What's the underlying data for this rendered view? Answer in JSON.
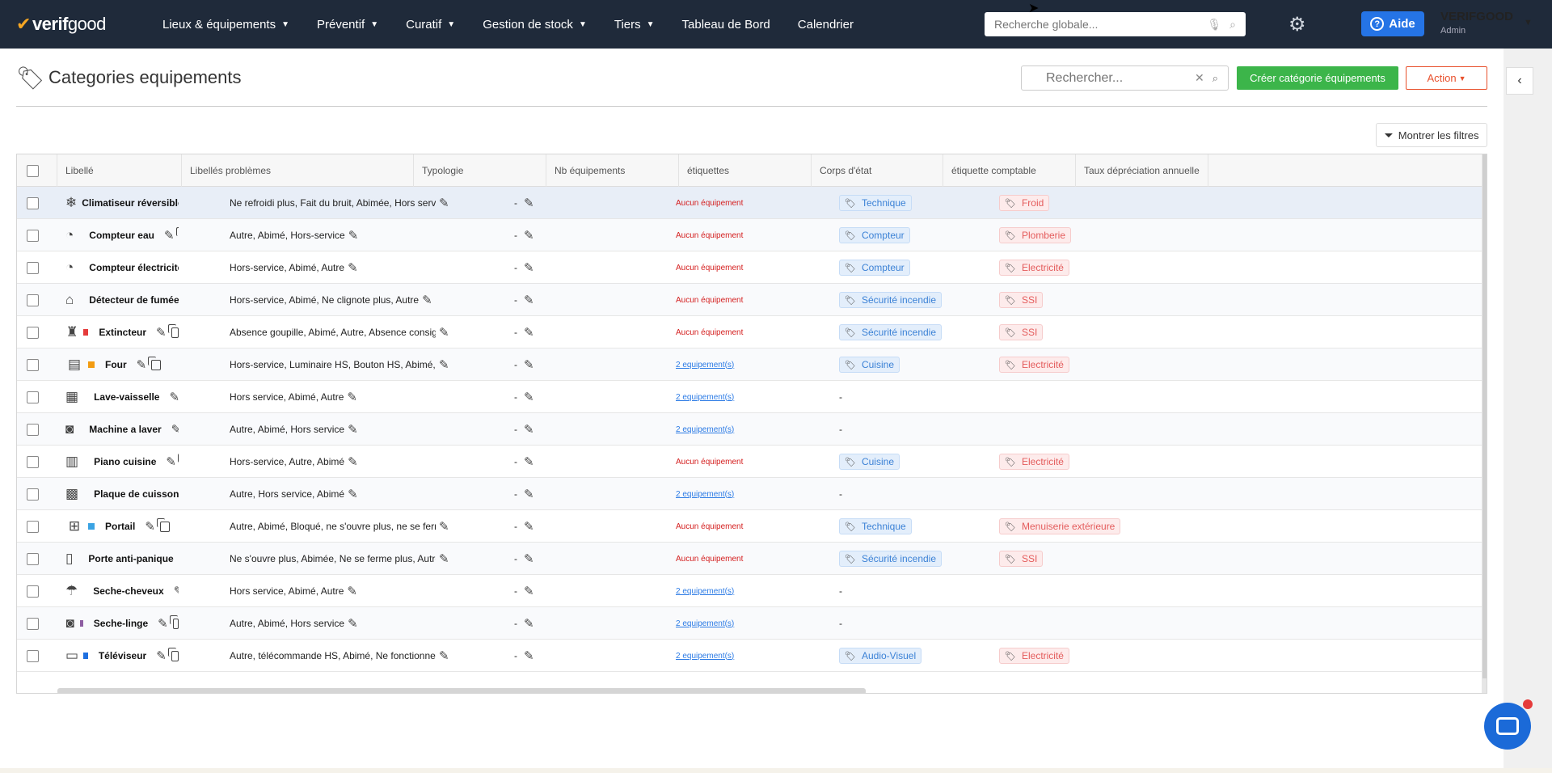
{
  "app": {
    "brand_left": "verif",
    "brand_right": "good"
  },
  "nav": [
    {
      "label": "Lieux & équipements",
      "has_menu": true
    },
    {
      "label": "Préventif",
      "has_menu": true
    },
    {
      "label": "Curatif",
      "has_menu": true
    },
    {
      "label": "Gestion de stock",
      "has_menu": true
    },
    {
      "label": "Tiers",
      "has_menu": true
    },
    {
      "label": "Tableau de Bord",
      "has_menu": false
    },
    {
      "label": "Calendrier",
      "has_menu": false
    }
  ],
  "global_search": {
    "placeholder": "Recherche globale..."
  },
  "aide_label": "Aide",
  "user": {
    "name": "VERIFGOOD",
    "role": "Admin"
  },
  "page": {
    "title": "Categories equipements",
    "search_placeholder": "Rechercher...",
    "create_label": "Créer catégorie équipements",
    "action_label": "Action",
    "filters_label": "Montrer les filtres"
  },
  "table": {
    "columns": [
      "Libellé",
      "Libellés problèmes",
      "Typologie",
      "Nb équipements",
      "étiquettes",
      "Corps d'état",
      "étiquette comptable",
      "Taux dépréciation annuelle"
    ],
    "rows": [
      {
        "icon": "air-conditioner-icon",
        "glyph": "❄",
        "color": "",
        "label": "Climatiseur réversible",
        "problems": "Ne refroidi plus, Fait du bruit, Abimée, Hors service, Autre",
        "typologie": "-",
        "nb": "Aucun équipement",
        "nb_zero": true,
        "tag": "Technique",
        "corps": "Froid",
        "copy": false,
        "highlight": true
      },
      {
        "icon": "water-meter-icon",
        "glyph": "◔",
        "color": "#1e6fe0",
        "label": "Compteur eau",
        "problems": "Autre, Abimé, Hors-service",
        "typologie": "-",
        "nb": "Aucun équipement",
        "nb_zero": true,
        "tag": "Compteur",
        "corps": "Plomberie",
        "copy": true
      },
      {
        "icon": "electric-meter-icon",
        "glyph": "◔",
        "color": "#f2c200",
        "thin": true,
        "label": "Compteur électricité",
        "problems": "Hors-service, Abimé, Autre",
        "typologie": "-",
        "nb": "Aucun équipement",
        "nb_zero": true,
        "tag": "Compteur",
        "corps": "Electricité",
        "copy": false
      },
      {
        "icon": "smoke-detector-icon",
        "glyph": "⌂",
        "color": "#e8502c",
        "thin": true,
        "label": "Détecteur de fumée",
        "problems": "Hors-service, Abimé, Ne clignote plus, Autre",
        "typologie": "-",
        "nb": "Aucun équipement",
        "nb_zero": true,
        "tag": "Sécurité incendie",
        "corps": "SSI",
        "copy": false
      },
      {
        "icon": "extinguisher-icon",
        "glyph": "♜",
        "color": "#e53b3b",
        "label": "Extincteur",
        "problems": "Absence goupille, Abimé, Autre, Absence consigne",
        "typologie": "-",
        "nb": "Aucun équipement",
        "nb_zero": true,
        "tag": "Sécurité incendie",
        "corps": "SSI",
        "copy": true
      },
      {
        "icon": "oven-icon",
        "glyph": "▤",
        "color": "#f39c12",
        "label": "Four",
        "problems": "Hors-service, Luminaire HS, Bouton HS, Abimé, Autre",
        "typologie": "-",
        "nb": "2 equipement(s)",
        "nb_zero": false,
        "tag": "Cuisine",
        "corps": "Electricité",
        "copy": true
      },
      {
        "icon": "dishwasher-icon",
        "glyph": "▦",
        "color": "#d42020",
        "label": "Lave-vaisselle",
        "problems": "Hors service, Abimé, Autre",
        "typologie": "-",
        "nb": "2 equipement(s)",
        "nb_zero": false,
        "tag": "",
        "corps": "",
        "copy": true
      },
      {
        "icon": "washing-machine-icon",
        "glyph": "◙",
        "color": "#f39c12",
        "label": "Machine a laver",
        "problems": "Autre, Abimé, Hors service",
        "typologie": "-",
        "nb": "2 equipement(s)",
        "nb_zero": false,
        "tag": "",
        "corps": "",
        "copy": true
      },
      {
        "icon": "cooking-range-icon",
        "glyph": "▥",
        "color": "#f39c12",
        "label": "Piano cuisine",
        "problems": "Hors-service, Autre, Abimé",
        "typologie": "-",
        "nb": "Aucun équipement",
        "nb_zero": true,
        "tag": "Cuisine",
        "corps": "Electricité",
        "copy": true
      },
      {
        "icon": "cooktop-icon",
        "glyph": "▩",
        "color": "#d42020",
        "thin": true,
        "label": "Plaque de cuisson",
        "problems": "Autre, Hors service, Abimé",
        "typologie": "-",
        "nb": "2 equipement(s)",
        "nb_zero": false,
        "tag": "",
        "corps": "",
        "copy": true
      },
      {
        "icon": "gate-icon",
        "glyph": "⊞",
        "color": "#3aa3e3",
        "label": "Portail",
        "problems": "Autre, Abimé, Bloqué, ne s'ouvre plus, ne se ferme plus, pb télécommande",
        "typologie": "-",
        "nb": "Aucun équipement",
        "nb_zero": true,
        "tag": "Technique",
        "corps": "Menuiserie extérieure",
        "copy": true
      },
      {
        "icon": "panic-door-icon",
        "glyph": "▯",
        "color": "#d42020",
        "thin": true,
        "label": "Porte anti-panique",
        "problems": "Ne s'ouvre plus, Abimée, Ne se ferme plus, Autre",
        "typologie": "-",
        "nb": "Aucun équipement",
        "nb_zero": true,
        "tag": "Sécurité incendie",
        "corps": "SSI",
        "copy": true
      },
      {
        "icon": "hair-dryer-icon",
        "glyph": "☂",
        "color": "#2e7d32",
        "label": "Seche-cheveux",
        "problems": "Hors service, Abimé, Autre",
        "typologie": "-",
        "nb": "2 equipement(s)",
        "nb_zero": false,
        "tag": "",
        "corps": "",
        "copy": true
      },
      {
        "icon": "dryer-icon",
        "glyph": "◙",
        "color": "#8e5ea2",
        "label": "Seche-linge",
        "problems": "Autre, Abimé, Hors service",
        "typologie": "-",
        "nb": "2 equipement(s)",
        "nb_zero": false,
        "tag": "",
        "corps": "",
        "copy": true
      },
      {
        "icon": "tv-icon",
        "glyph": "▭",
        "color": "#1e6fe0",
        "label": "Téléviseur",
        "problems": "Autre, télécommande HS, Abimé, Ne fonctionne plus",
        "typologie": "-",
        "nb": "2 equipement(s)",
        "nb_zero": false,
        "tag": "Audio-Visuel",
        "corps": "Electricité",
        "copy": true
      }
    ]
  }
}
